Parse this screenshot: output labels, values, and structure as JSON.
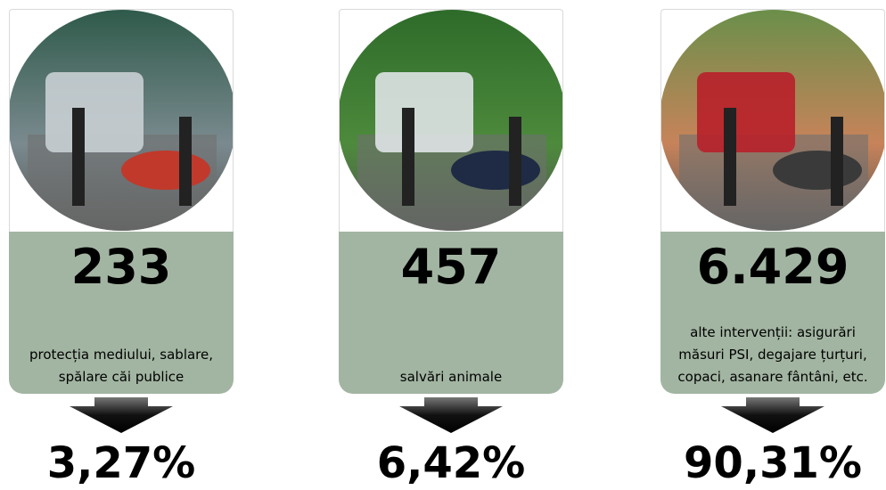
{
  "cards": [
    {
      "count": "233",
      "description": "protecția mediului, sablare, spălare căi publice",
      "share": "3,27%"
    },
    {
      "count": "457",
      "description": "salvări animale",
      "share": "6,42%"
    },
    {
      "count": "6.429",
      "description": "alte intervenții: asigurări măsuri PSI, degajare țurțuri, copaci, asanare fântâni, etc.",
      "share": "90,31%"
    }
  ]
}
